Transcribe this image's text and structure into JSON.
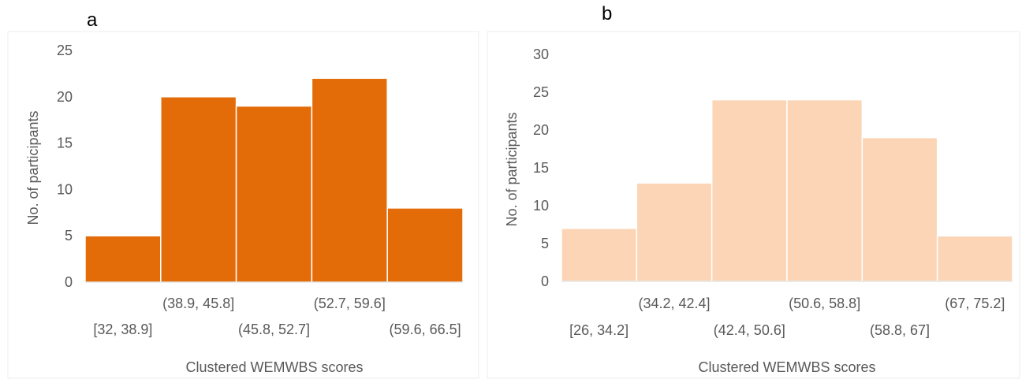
{
  "panels": [
    {
      "panel_label": "a",
      "color": "#e36c09",
      "chart_data": {
        "type": "bar",
        "title": "",
        "xlabel": "Clustered WEMWBS scores",
        "ylabel": "No. of participants",
        "categories": [
          "[32, 38.9]",
          "(38.9, 45.8]",
          "(45.8, 52.7]",
          "(52.7, 59.6]",
          "(59.6, 66.5]"
        ],
        "values": [
          5,
          20,
          19,
          22,
          8
        ],
        "ylim": [
          0,
          25
        ],
        "yticks": [
          0,
          5,
          10,
          15,
          20,
          25
        ],
        "grid": false
      }
    },
    {
      "panel_label": "b",
      "color": "#fbd5b5",
      "chart_data": {
        "type": "bar",
        "title": "",
        "xlabel": "Clustered WEMWBS scores",
        "ylabel": "No. of participants",
        "categories": [
          "[26, 34.2]",
          "(34.2, 42.4]",
          "(42.4, 50.6]",
          "(50.6, 58.8]",
          "(58.8, 67]",
          "(67, 75.2]"
        ],
        "values": [
          7,
          13,
          24,
          24,
          19,
          6
        ],
        "ylim": [
          0,
          30
        ],
        "yticks": [
          0,
          5,
          10,
          15,
          20,
          25,
          30
        ],
        "grid": false
      }
    }
  ]
}
